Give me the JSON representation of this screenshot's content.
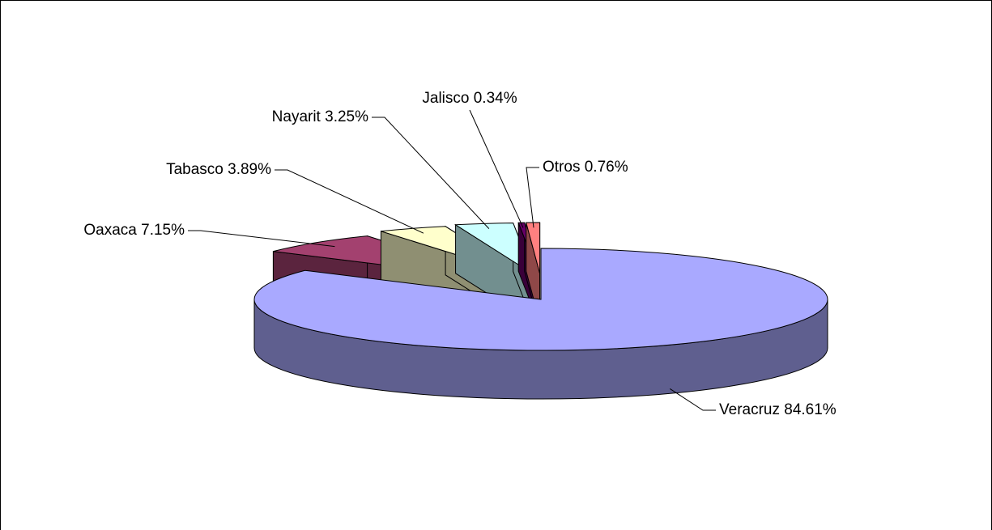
{
  "chart_data": {
    "type": "pie",
    "categories": [
      "Veracruz",
      "Oaxaca",
      "Tabasco",
      "Nayarit",
      "Jalisco",
      "Otros"
    ],
    "values": [
      84.61,
      7.15,
      3.89,
      3.25,
      0.34,
      0.76
    ],
    "value_labels": [
      "84.61%",
      "7.15%",
      "3.89%",
      "3.25%",
      "0.34%",
      "0.76%"
    ],
    "colors": [
      "#a9a9ff",
      "#a3416f",
      "#ffffcc",
      "#ccffff",
      "#660066",
      "#ff8080"
    ]
  }
}
